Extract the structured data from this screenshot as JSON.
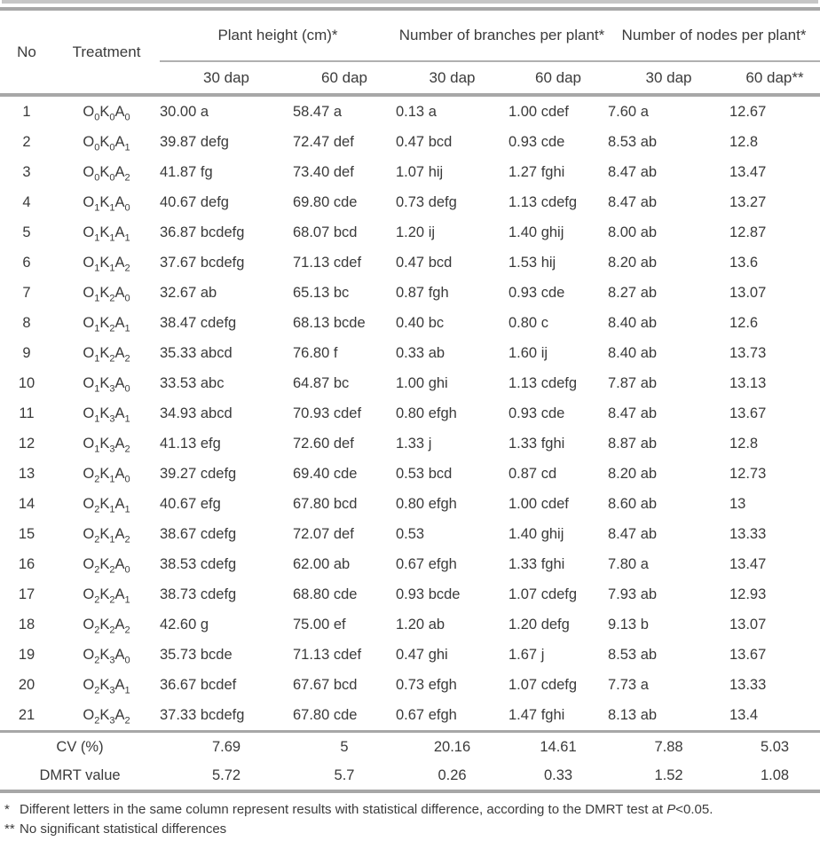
{
  "table": {
    "header": {
      "no": "No",
      "treatment": "Treatment",
      "groups": [
        {
          "label": "Plant height (cm)*"
        },
        {
          "label": "Number of branches per plant*"
        },
        {
          "label": "Number of nodes per plant*"
        }
      ],
      "sub": [
        "30 dap",
        "60 dap",
        "30 dap",
        "60 dap",
        "30 dap",
        "60 dap**"
      ]
    },
    "rows": [
      {
        "no": "1",
        "treatment": "O0K0A0",
        "ph30": "30.00 a",
        "ph60": "58.47 a",
        "br30": "0.13 a",
        "br60": "1.00 cdef",
        "no30": "7.60 a",
        "no60": "12.67"
      },
      {
        "no": "2",
        "treatment": "O0K0A1",
        "ph30": "39.87 defg",
        "ph60": "72.47 def",
        "br30": "0.47 bcd",
        "br60": "0.93 cde",
        "no30": "8.53 ab",
        "no60": "12.8"
      },
      {
        "no": "3",
        "treatment": "O0K0A2",
        "ph30": "41.87 fg",
        "ph60": "73.40 def",
        "br30": "1.07 hij",
        "br60": "1.27 fghi",
        "no30": "8.47 ab",
        "no60": "13.47"
      },
      {
        "no": "4",
        "treatment": "O1K1A0",
        "ph30": "40.67 defg",
        "ph60": "69.80 cde",
        "br30": "0.73 defg",
        "br60": "1.13 cdefg",
        "no30": "8.47 ab",
        "no60": "13.27"
      },
      {
        "no": "5",
        "treatment": "O1K1A1",
        "ph30": "36.87 bcdefg",
        "ph60": "68.07 bcd",
        "br30": "1.20 ij",
        "br60": "1.40 ghij",
        "no30": "8.00 ab",
        "no60": "12.87"
      },
      {
        "no": "6",
        "treatment": "O1K1A2",
        "ph30": "37.67 bcdefg",
        "ph60": "71.13 cdef",
        "br30": "0.47 bcd",
        "br60": "1.53 hij",
        "no30": "8.20 ab",
        "no60": "13.6"
      },
      {
        "no": "7",
        "treatment": "O1K2A0",
        "ph30": "32.67 ab",
        "ph60": "65.13 bc",
        "br30": "0.87 fgh",
        "br60": "0.93 cde",
        "no30": "8.27 ab",
        "no60": "13.07"
      },
      {
        "no": "8",
        "treatment": "O1K2A1",
        "ph30": "38.47 cdefg",
        "ph60": "68.13 bcde",
        "br30": "0.40 bc",
        "br60": "0.80 c",
        "no30": "8.40 ab",
        "no60": "12.6"
      },
      {
        "no": "9",
        "treatment": "O1K2A2",
        "ph30": "35.33 abcd",
        "ph60": "76.80 f",
        "br30": "0.33 ab",
        "br60": "1.60 ij",
        "no30": "8.40 ab",
        "no60": "13.73"
      },
      {
        "no": "10",
        "treatment": "O1K3A0",
        "ph30": "33.53 abc",
        "ph60": "64.87 bc",
        "br30": "1.00 ghi",
        "br60": "1.13 cdefg",
        "no30": "7.87 ab",
        "no60": "13.13"
      },
      {
        "no": "11",
        "treatment": "O1K3A1",
        "ph30": "34.93 abcd",
        "ph60": "70.93 cdef",
        "br30": "0.80 efgh",
        "br60": "0.93 cde",
        "no30": "8.47 ab",
        "no60": "13.67"
      },
      {
        "no": "12",
        "treatment": "O1K3A2",
        "ph30": "41.13 efg",
        "ph60": "72.60 def",
        "br30": "1.33 j",
        "br60": "1.33 fghi",
        "no30": "8.87 ab",
        "no60": "12.8"
      },
      {
        "no": "13",
        "treatment": "O2K1A0",
        "ph30": "39.27 cdefg",
        "ph60": "69.40 cde",
        "br30": "0.53 bcd",
        "br60": "0.87 cd",
        "no30": "8.20 ab",
        "no60": "12.73"
      },
      {
        "no": "14",
        "treatment": "O2K1A1",
        "ph30": "40.67 efg",
        "ph60": "67.80 bcd",
        "br30": "0.80 efgh",
        "br60": "1.00 cdef",
        "no30": "8.60 ab",
        "no60": "13"
      },
      {
        "no": "15",
        "treatment": "O2K1A2",
        "ph30": "38.67 cdefg",
        "ph60": "72.07 def",
        "br30": "0.53",
        "br60": "1.40 ghij",
        "no30": "8.47 ab",
        "no60": "13.33"
      },
      {
        "no": "16",
        "treatment": "O2K2A0",
        "ph30": "38.53 cdefg",
        "ph60": "62.00 ab",
        "br30": "0.67 efgh",
        "br60": "1.33 fghi",
        "no30": "7.80 a",
        "no60": "13.47"
      },
      {
        "no": "17",
        "treatment": "O2K2A1",
        "ph30": "38.73 cdefg",
        "ph60": "68.80 cde",
        "br30": "0.93 bcde",
        "br60": "1.07 cdefg",
        "no30": "7.93 ab",
        "no60": "12.93"
      },
      {
        "no": "18",
        "treatment": "O2K2A2",
        "ph30": "42.60 g",
        "ph60": "75.00 ef",
        "br30": "1.20 ab",
        "br60": "1.20 defg",
        "no30": "9.13 b",
        "no60": "13.07"
      },
      {
        "no": "19",
        "treatment": "O2K3A0",
        "ph30": "35.73 bcde",
        "ph60": "71.13 cdef",
        "br30": "0.47 ghi",
        "br60": "1.67 j",
        "no30": "8.53 ab",
        "no60": "13.67"
      },
      {
        "no": "20",
        "treatment": "O2K3A1",
        "ph30": "36.67 bcdef",
        "ph60": "67.67 bcd",
        "br30": "0.73 efgh",
        "br60": "1.07 cdefg",
        "no30": "7.73 a",
        "no60": "13.33"
      },
      {
        "no": "21",
        "treatment": "O2K3A2",
        "ph30": "37.33 bcdefg",
        "ph60": "67.80 cde",
        "br30": "0.67 efgh",
        "br60": "1.47 fghi",
        "no30": "8.13 ab",
        "no60": "13.4"
      }
    ],
    "summary": {
      "cv": {
        "label": "CV (%)",
        "values": [
          "7.69",
          "5",
          "20.16",
          "14.61",
          "7.88",
          "5.03"
        ]
      },
      "dmrt": {
        "label": "DMRT value",
        "values": [
          "5.72",
          "5.7",
          "0.26",
          "0.33",
          "1.52",
          "1.08"
        ]
      }
    }
  },
  "footnotes": {
    "fn1": {
      "marker": "*",
      "pre": "Different letters in the same column represent results with statistical difference, according to the DMRT test at ",
      "italic": "P",
      "post": "<0.05."
    },
    "fn2": {
      "marker": "**",
      "text": "No significant statistical differences"
    }
  },
  "colors": {
    "rule_thick": "#a7a7a7",
    "rule_thin": "#b0b0b0",
    "text": "#3a3a3a",
    "top_strip": "#c6c6c6"
  },
  "chart_data": {
    "type": "table",
    "title": "",
    "columns": [
      "No",
      "Treatment",
      "Plant height (cm)* 30 dap",
      "Plant height (cm)* 60 dap",
      "Number of branches per plant* 30 dap",
      "Number of branches per plant* 60 dap",
      "Number of nodes per plant* 30 dap",
      "Number of nodes per plant* 60 dap**"
    ]
  }
}
